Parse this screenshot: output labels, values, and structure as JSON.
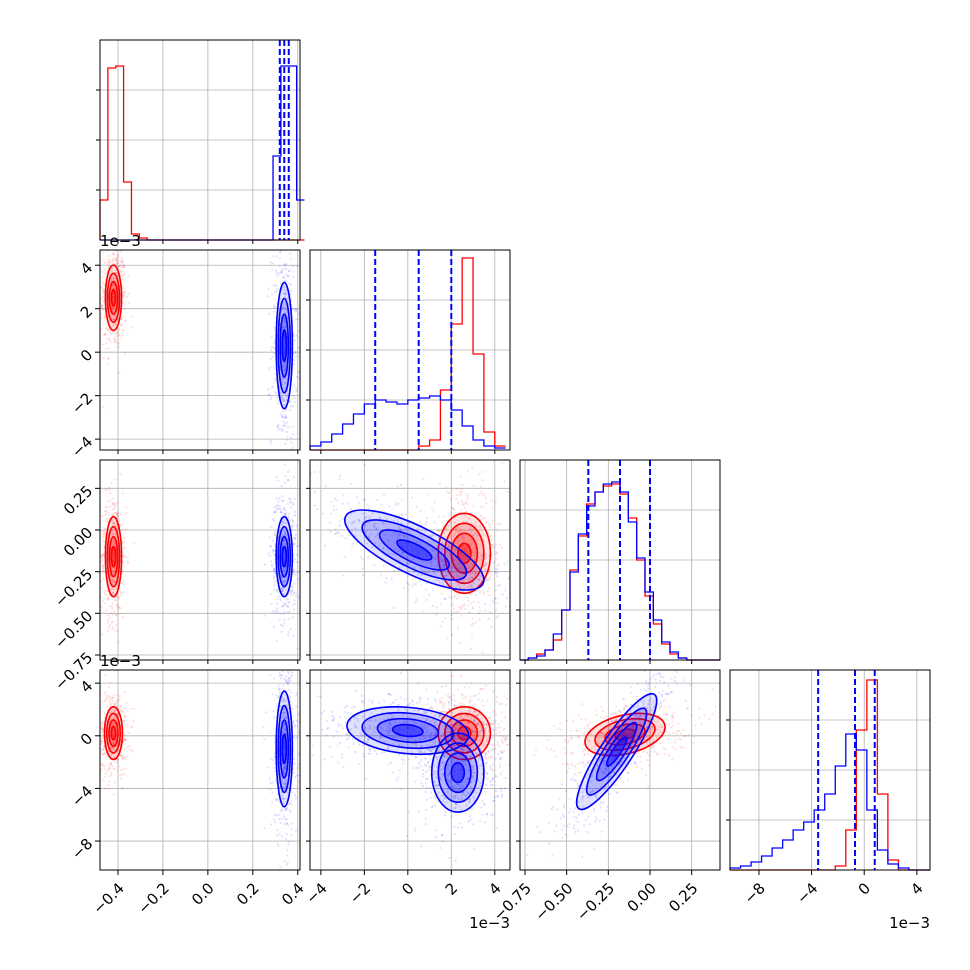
{
  "chart_data": {
    "type": "corner",
    "grid": true,
    "colors": {
      "red": "#ff0000",
      "blue": "#0000ff",
      "grid": "#b0b0b0",
      "axis": "#000000"
    },
    "offset_labels": {
      "p1": "1e−3",
      "p3": "1e−3"
    },
    "params": [
      {
        "id": "p0",
        "range": [
          -0.48,
          0.41
        ],
        "ticks": [
          -0.4,
          -0.2,
          0.0,
          0.2,
          0.4
        ],
        "tick_labels": [
          "−0.4",
          "−0.2",
          "0.0",
          "0.2",
          "0.4"
        ],
        "quantiles": [
          0.32,
          0.34,
          0.36
        ]
      },
      {
        "id": "p1",
        "range": [
          -4.5,
          4.7
        ],
        "ticks": [
          -4,
          -2,
          0,
          2,
          4
        ],
        "tick_labels": [
          "−4",
          "−2",
          "0",
          "2",
          "4"
        ],
        "quantiles": [
          -1.5,
          0.5,
          2.0
        ]
      },
      {
        "id": "p2",
        "range": [
          -0.78,
          0.42
        ],
        "ticks": [
          -0.75,
          -0.5,
          -0.25,
          0.0,
          0.25
        ],
        "tick_labels": [
          "−0.75",
          "−0.50",
          "−0.25",
          "0.00",
          "0.25"
        ],
        "quantiles": [
          -0.37,
          -0.18,
          0.0
        ]
      },
      {
        "id": "p3",
        "range": [
          -10.2,
          5.0
        ],
        "ticks": [
          -8,
          -4,
          0,
          4
        ],
        "tick_labels": [
          "−8",
          "−4",
          "0",
          "4"
        ],
        "quantiles": [
          -3.5,
          -0.7,
          0.8
        ]
      }
    ],
    "hist1d": {
      "p0": {
        "bins": [
          -0.48,
          -0.445,
          -0.41,
          -0.375,
          -0.34,
          -0.305,
          -0.27,
          -0.235,
          -0.2,
          -0.165,
          -0.13,
          -0.095,
          -0.06,
          -0.025,
          0.01,
          0.045,
          0.08,
          0.115,
          0.15,
          0.185,
          0.22,
          0.255,
          0.29,
          0.325,
          0.36,
          0.395,
          0.43
        ],
        "red": [
          0.2,
          0.86,
          0.87,
          0.29,
          0.03,
          0.01,
          0,
          0,
          0,
          0,
          0,
          0,
          0,
          0,
          0,
          0,
          0,
          0,
          0,
          0,
          0,
          0,
          0,
          0,
          0,
          0
        ],
        "blue": [
          0,
          0,
          0,
          0,
          0,
          0,
          0,
          0,
          0,
          0,
          0,
          0,
          0,
          0,
          0,
          0,
          0,
          0,
          0,
          0,
          0,
          0,
          0.42,
          0.87,
          0.87,
          0.2
        ]
      },
      "p1": {
        "bins": [
          -4.5,
          -4.0,
          -3.5,
          -3.0,
          -2.5,
          -2.0,
          -1.5,
          -1.0,
          -0.5,
          0.0,
          0.5,
          1.0,
          1.5,
          2.0,
          2.5,
          3.0,
          3.5,
          4.0,
          4.5
        ],
        "red": [
          0,
          0,
          0,
          0,
          0,
          0,
          0,
          0,
          0,
          0,
          0.02,
          0.05,
          0.3,
          0.63,
          0.96,
          0.48,
          0.09,
          0.02
        ],
        "blue": [
          0.02,
          0.04,
          0.08,
          0.13,
          0.18,
          0.23,
          0.25,
          0.24,
          0.23,
          0.25,
          0.26,
          0.27,
          0.25,
          0.2,
          0.12,
          0.05,
          0.02,
          0.01
        ]
      },
      "p2": {
        "bins": [
          -0.78,
          -0.73,
          -0.68,
          -0.63,
          -0.58,
          -0.53,
          -0.48,
          -0.43,
          -0.38,
          -0.33,
          -0.28,
          -0.23,
          -0.18,
          -0.13,
          -0.08,
          -0.03,
          0.02,
          0.07,
          0.12,
          0.17,
          0.22,
          0.27,
          0.32,
          0.37,
          0.42
        ],
        "red": [
          0,
          0.01,
          0.03,
          0.05,
          0.1,
          0.25,
          0.45,
          0.62,
          0.78,
          0.84,
          0.87,
          0.88,
          0.83,
          0.71,
          0.5,
          0.32,
          0.18,
          0.08,
          0.03,
          0.01,
          0,
          0,
          0,
          0
        ],
        "blue": [
          0,
          0.01,
          0.02,
          0.05,
          0.13,
          0.25,
          0.44,
          0.63,
          0.77,
          0.84,
          0.88,
          0.89,
          0.84,
          0.69,
          0.51,
          0.34,
          0.2,
          0.09,
          0.04,
          0.01,
          0,
          0,
          0,
          0
        ]
      },
      "p3": {
        "bins": [
          -10.2,
          -9.4,
          -8.6,
          -7.8,
          -7.0,
          -6.2,
          -5.4,
          -4.6,
          -3.8,
          -3.0,
          -2.2,
          -1.4,
          -0.6,
          0.2,
          1.0,
          1.8,
          2.6,
          3.4,
          4.2,
          5.0
        ],
        "red": [
          0,
          0,
          0,
          0,
          0,
          0,
          0,
          0,
          0,
          0,
          0.02,
          0.2,
          0.7,
          0.95,
          0.38,
          0.05,
          0,
          0,
          0
        ],
        "blue": [
          0.01,
          0.02,
          0.04,
          0.07,
          0.11,
          0.15,
          0.2,
          0.24,
          0.3,
          0.38,
          0.52,
          0.68,
          0.6,
          0.3,
          0.1,
          0.03,
          0.01,
          0,
          0
        ]
      }
    },
    "pairs": [
      {
        "x": "p0",
        "y": "p1",
        "red": [
          {
            "cx": -0.42,
            "cy": 2.5,
            "sx": 0.018,
            "sy": 0.75,
            "rho": 0
          }
        ],
        "blue": [
          {
            "cx": 0.34,
            "cy": 0.3,
            "sx": 0.018,
            "sy": 1.45,
            "rho": 0
          }
        ]
      },
      {
        "x": "p0",
        "y": "p2",
        "red": [
          {
            "cx": -0.42,
            "cy": -0.16,
            "sx": 0.018,
            "sy": 0.12,
            "rho": 0
          }
        ],
        "blue": [
          {
            "cx": 0.34,
            "cy": -0.16,
            "sx": 0.018,
            "sy": 0.12,
            "rho": 0
          }
        ]
      },
      {
        "x": "p0",
        "y": "p3",
        "red": [
          {
            "cx": -0.42,
            "cy": 0.2,
            "sx": 0.02,
            "sy": 1.0,
            "rho": 0
          }
        ],
        "blue": [
          {
            "cx": 0.34,
            "cy": -1.0,
            "sx": 0.018,
            "sy": 2.2,
            "rho": 0
          }
        ]
      },
      {
        "x": "p1",
        "y": "p2",
        "red": [
          {
            "cx": 2.6,
            "cy": -0.14,
            "sx": 0.6,
            "sy": 0.12,
            "rho": 0
          }
        ],
        "blue": [
          {
            "cx": 0.3,
            "cy": -0.12,
            "sx": 1.6,
            "sy": 0.12,
            "rho": -0.75
          }
        ]
      },
      {
        "x": "p1",
        "y": "p3",
        "red": [
          {
            "cx": 2.6,
            "cy": 0.2,
            "sx": 0.6,
            "sy": 1.0,
            "rho": 0
          }
        ],
        "blue": [
          {
            "cx": 0.0,
            "cy": 0.4,
            "sx": 1.4,
            "sy": 0.9,
            "rho": -0.2
          },
          {
            "cx": 2.3,
            "cy": -2.8,
            "sx": 0.6,
            "sy": 1.5,
            "rho": 0
          }
        ]
      },
      {
        "x": "p2",
        "y": "p3",
        "red": [
          {
            "cx": -0.15,
            "cy": 0.1,
            "sx": 0.12,
            "sy": 0.8,
            "rho": 0.35
          }
        ],
        "blue": [
          {
            "cx": -0.2,
            "cy": -1.2,
            "sx": 0.12,
            "sy": 2.2,
            "rho": 0.88
          }
        ]
      }
    ]
  }
}
